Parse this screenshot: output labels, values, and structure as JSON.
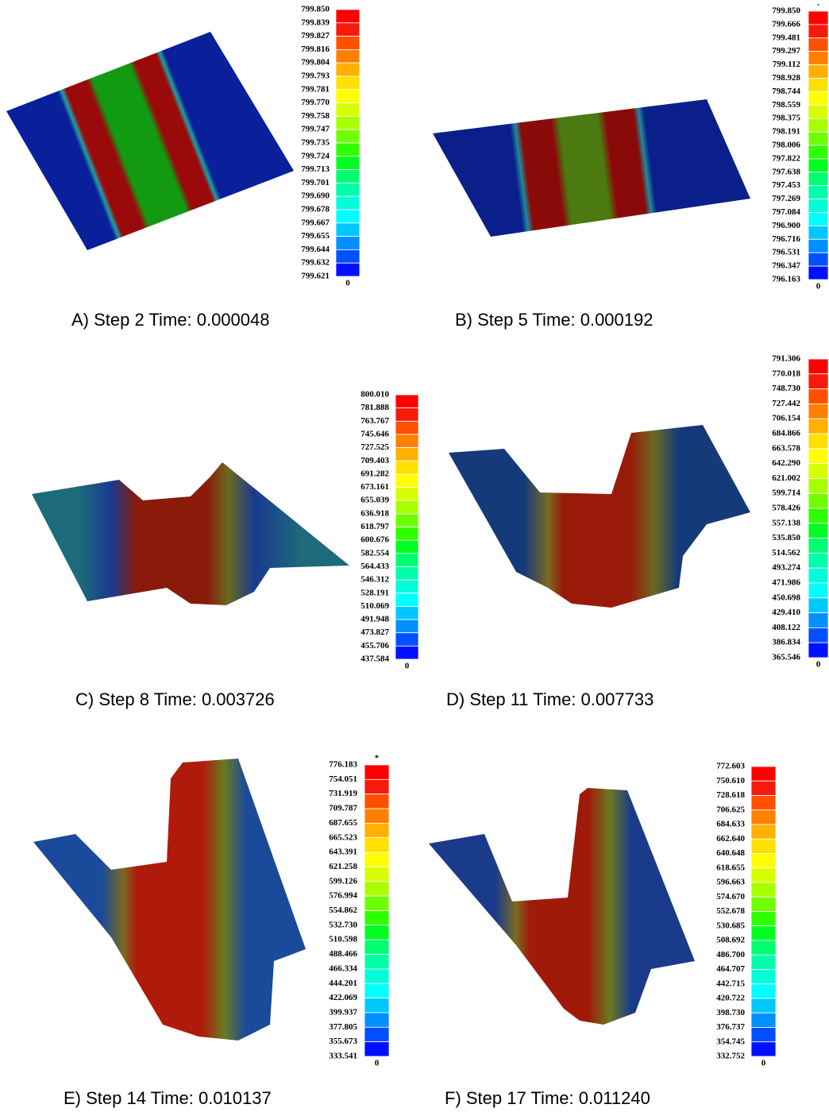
{
  "panels": [
    {
      "caption": "A) Step 2 Time: 0.000048",
      "legend_labels": [
        "799.850",
        "799.839",
        "799.827",
        "799.816",
        "799.804",
        "799.793",
        "799.781",
        "799.770",
        "799.758",
        "799.747",
        "799.735",
        "799.724",
        "799.713",
        "799.701",
        "799.690",
        "799.678",
        "799.667",
        "799.655",
        "799.644",
        "799.632",
        "799.621"
      ],
      "legend_foot": "0"
    },
    {
      "caption": "B) Step 5 Time: 0.000192",
      "top_mark": "-",
      "legend_labels": [
        "799.850",
        "799.666",
        "799.481",
        "799.297",
        "799.112",
        "798.928",
        "798.744",
        "798.559",
        "798.375",
        "798.191",
        "798.006",
        "797.822",
        "797.638",
        "797.453",
        "797.269",
        "797.084",
        "796.900",
        "796.716",
        "796.531",
        "796.347",
        "796.163"
      ],
      "legend_foot": "0"
    },
    {
      "caption": "C) Step 8 Time: 0.003726",
      "legend_labels": [
        "800.010",
        "781.888",
        "763.767",
        "745.646",
        "727.525",
        "709.403",
        "691.282",
        "673.161",
        "655.039",
        "636.918",
        "618.797",
        "600.676",
        "582.554",
        "564.433",
        "546.312",
        "528.191",
        "510.069",
        "491.948",
        "473.827",
        "455.706",
        "437.584"
      ],
      "legend_foot": "0"
    },
    {
      "caption": "D) Step 11 Time: 0.007733",
      "legend_labels": [
        "791.306",
        "770.018",
        "748.730",
        "727.442",
        "706.154",
        "684.866",
        "663.578",
        "642.290",
        "621.002",
        "599.714",
        "578.426",
        "557.138",
        "535.850",
        "514.562",
        "493.274",
        "471.986",
        "450.698",
        "429.410",
        "408.122",
        "386.834",
        "365.546"
      ],
      "legend_foot": "0"
    },
    {
      "caption": "E) Step 14 Time: 0.010137",
      "top_mark": "*",
      "legend_labels": [
        "776.183",
        "754.051",
        "731.919",
        "709.787",
        "687.655",
        "665.523",
        "643.391",
        "621.258",
        "599.126",
        "576.994",
        "554.862",
        "532.730",
        "510.598",
        "488.466",
        "466.334",
        "444.201",
        "422.069",
        "399.937",
        "377.805",
        "355.673",
        "333.541"
      ],
      "legend_foot": "0"
    },
    {
      "caption": "F) Step 17 Time: 0.011240",
      "legend_labels": [
        "772.603",
        "750.610",
        "728.618",
        "706.625",
        "684.633",
        "662.640",
        "640.648",
        "618.655",
        "596.663",
        "574.670",
        "552.678",
        "530.685",
        "508.692",
        "486.700",
        "464.707",
        "442.715",
        "420.722",
        "398.730",
        "376.737",
        "354.745",
        "332.752"
      ],
      "legend_foot": "0"
    }
  ]
}
